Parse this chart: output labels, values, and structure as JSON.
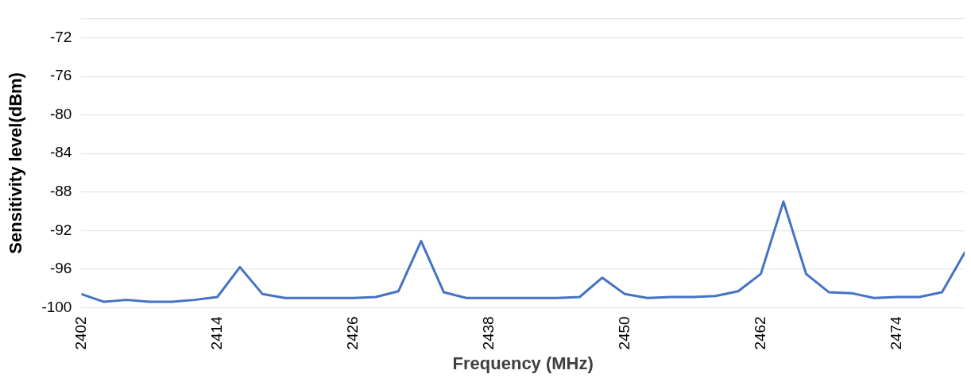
{
  "chart_data": {
    "type": "line",
    "xlabel": "Frequency (MHz)",
    "ylabel": "Sensitivity level(dBm)",
    "x": [
      2402,
      2404,
      2406,
      2408,
      2410,
      2412,
      2414,
      2416,
      2418,
      2420,
      2422,
      2424,
      2426,
      2428,
      2430,
      2432,
      2434,
      2436,
      2438,
      2440,
      2442,
      2444,
      2446,
      2448,
      2450,
      2452,
      2454,
      2456,
      2458,
      2460,
      2462,
      2464,
      2466,
      2468,
      2470,
      2472,
      2474,
      2476,
      2478,
      2480
    ],
    "series": [
      {
        "color": "#4472c4",
        "values": [
          -98.6,
          -99.4,
          -99.2,
          -99.4,
          -99.4,
          -99.2,
          -98.9,
          -95.8,
          -98.6,
          -99.0,
          -99.0,
          -99.0,
          -99.0,
          -98.9,
          -98.3,
          -93.1,
          -98.4,
          -99.0,
          -99.0,
          -99.0,
          -99.0,
          -99.0,
          -98.9,
          -96.9,
          -98.6,
          -99.0,
          -98.9,
          -98.9,
          -98.8,
          -98.3,
          -96.5,
          -89.0,
          -96.5,
          -98.4,
          -98.5,
          -99.0,
          -98.9,
          -98.9,
          -98.4,
          -94.3
        ]
      }
    ],
    "xlim": [
      2402,
      2480
    ],
    "xticks": [
      2402,
      2414,
      2426,
      2438,
      2450,
      2462,
      2474
    ],
    "ylim": [
      -100,
      -70
    ],
    "yticks": [
      -100,
      -96,
      -92,
      -88,
      -84,
      -80,
      -76,
      -72,
      {
        "value": -70,
        "label": null
      }
    ],
    "grid": "y",
    "legend": false,
    "marker": "none",
    "line_style": "solid"
  }
}
